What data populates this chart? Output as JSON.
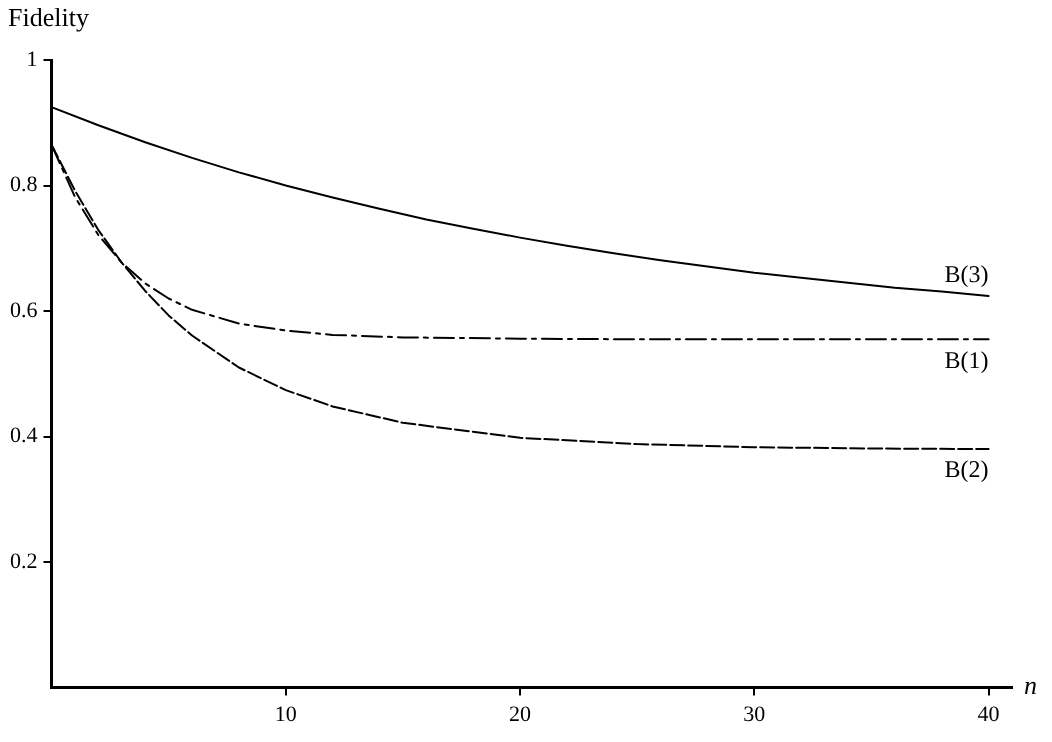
{
  "chart_data": {
    "type": "line",
    "xlabel": "n",
    "ylabel": "Fidelity",
    "xlim": [
      0,
      41
    ],
    "ylim": [
      0,
      1
    ],
    "xticks": [
      10,
      20,
      30,
      40
    ],
    "yticks": [
      0.2,
      0.4,
      0.6,
      0.8,
      1
    ],
    "grid": false,
    "legend": false,
    "marker": "none",
    "series": [
      {
        "name": "B(3)",
        "color": "#000000",
        "line_style": "solid",
        "x": [
          0,
          2,
          4,
          6,
          8,
          10,
          12,
          14,
          16,
          18,
          20,
          22,
          24,
          26,
          28,
          30,
          32,
          34,
          36,
          38,
          40
        ],
        "values": [
          0.925,
          0.896,
          0.869,
          0.844,
          0.821,
          0.8,
          0.781,
          0.763,
          0.746,
          0.731,
          0.717,
          0.704,
          0.692,
          0.681,
          0.671,
          0.661,
          0.653,
          0.645,
          0.637,
          0.631,
          0.624
        ]
      },
      {
        "name": "B(1)",
        "color": "#000000",
        "line_style": "dashdot",
        "x": [
          0,
          1,
          2,
          3,
          4,
          5,
          6,
          8,
          10,
          12,
          15,
          20,
          25,
          30,
          35,
          40
        ],
        "values": [
          0.865,
          0.782,
          0.721,
          0.677,
          0.644,
          0.62,
          0.602,
          0.58,
          0.569,
          0.562,
          0.558,
          0.556,
          0.555,
          0.555,
          0.555,
          0.555
        ]
      },
      {
        "name": "B(2)",
        "color": "#000000",
        "line_style": "dashed",
        "x": [
          0,
          1,
          2,
          3,
          4,
          5,
          6,
          8,
          10,
          12,
          15,
          20,
          25,
          30,
          35,
          40
        ],
        "values": [
          0.865,
          0.792,
          0.729,
          0.677,
          0.632,
          0.593,
          0.561,
          0.51,
          0.474,
          0.448,
          0.422,
          0.398,
          0.388,
          0.383,
          0.381,
          0.38
        ]
      }
    ]
  }
}
